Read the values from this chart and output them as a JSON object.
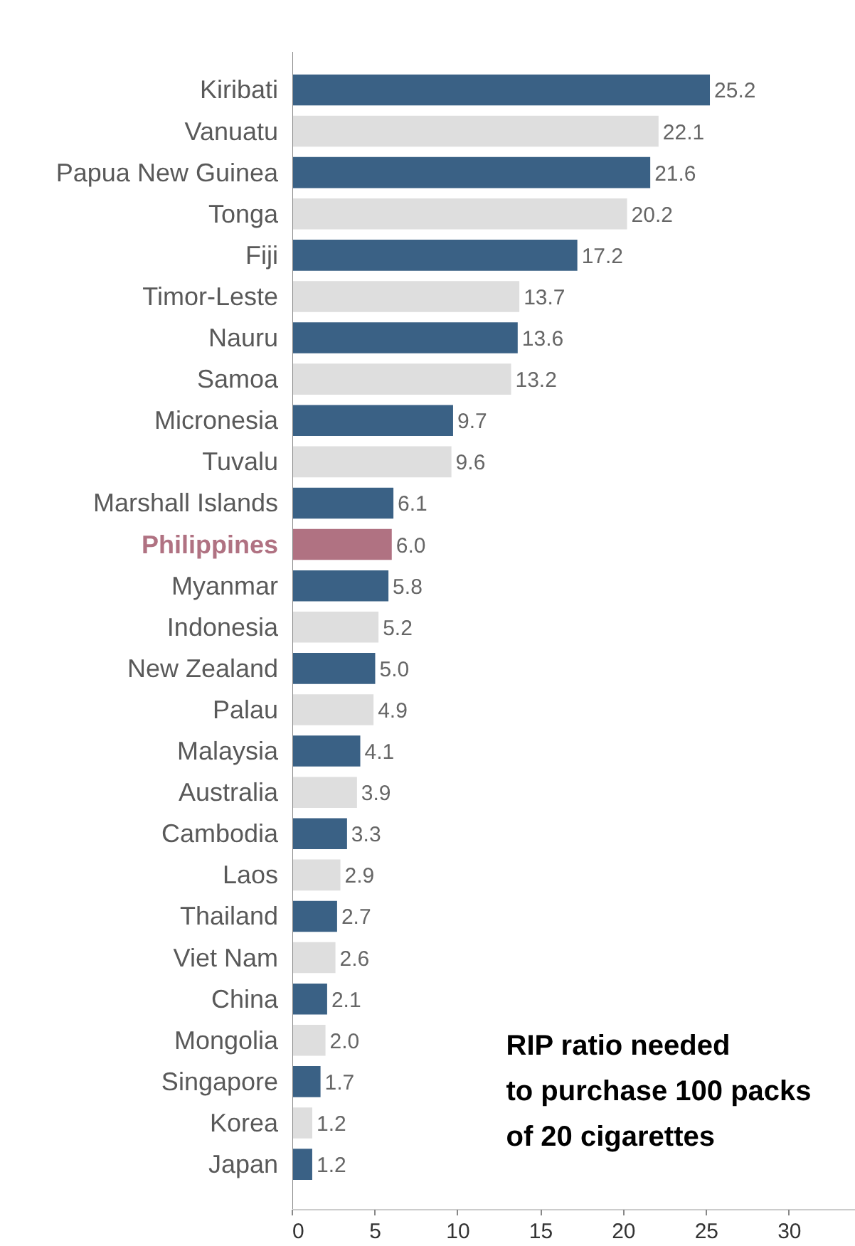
{
  "chart_data": {
    "type": "bar",
    "orientation": "horizontal",
    "categories": [
      "Kiribati",
      "Vanuatu",
      "Papua New Guinea",
      "Tonga",
      "Fiji",
      "Timor-Leste",
      "Nauru",
      "Samoa",
      "Micronesia",
      "Tuvalu",
      "Marshall Islands",
      "Philippines",
      "Myanmar",
      "Indonesia",
      "New Zealand",
      "Palau",
      "Malaysia",
      "Australia",
      "Cambodia",
      "Laos",
      "Thailand",
      "Viet Nam",
      "China",
      "Mongolia",
      "Singapore",
      "Korea",
      "Japan"
    ],
    "values": [
      25.2,
      22.1,
      21.6,
      20.2,
      17.2,
      13.7,
      13.6,
      13.2,
      9.7,
      9.6,
      6.1,
      6.0,
      5.8,
      5.2,
      5.0,
      4.9,
      4.1,
      3.9,
      3.3,
      2.9,
      2.7,
      2.6,
      2.1,
      2.0,
      1.7,
      1.2,
      1.2
    ],
    "colors": [
      "#3a6185",
      "#dedede",
      "#3a6185",
      "#dedede",
      "#3a6185",
      "#dedede",
      "#3a6185",
      "#dedede",
      "#3a6185",
      "#dedede",
      "#3a6185",
      "#b07282",
      "#3a6185",
      "#dedede",
      "#3a6185",
      "#dedede",
      "#3a6185",
      "#dedede",
      "#3a6185",
      "#dedede",
      "#3a6185",
      "#dedede",
      "#3a6185",
      "#dedede",
      "#3a6185",
      "#dedede",
      "#3a6185"
    ],
    "xlim": [
      0,
      34
    ],
    "xticks": [
      0,
      5,
      10,
      15,
      20,
      25,
      30
    ],
    "value_labels": [
      "25.2",
      "22.1",
      "21.6",
      "20.2",
      "17.2",
      "13.7",
      "13.6",
      "13.2",
      "9.7",
      "9.6",
      "6.1",
      "6.0",
      "5.8",
      "5.2",
      "5.0",
      "4.9",
      "4.1",
      "3.9",
      "3.3",
      "2.9",
      "2.7",
      "2.6",
      "2.1",
      "2.0",
      "1.7",
      "1.2",
      "1.2"
    ],
    "grid": false,
    "annotations": [
      "RIP ratio needed\nto purchase 100 packs\nof 20 cigarettes"
    ]
  }
}
